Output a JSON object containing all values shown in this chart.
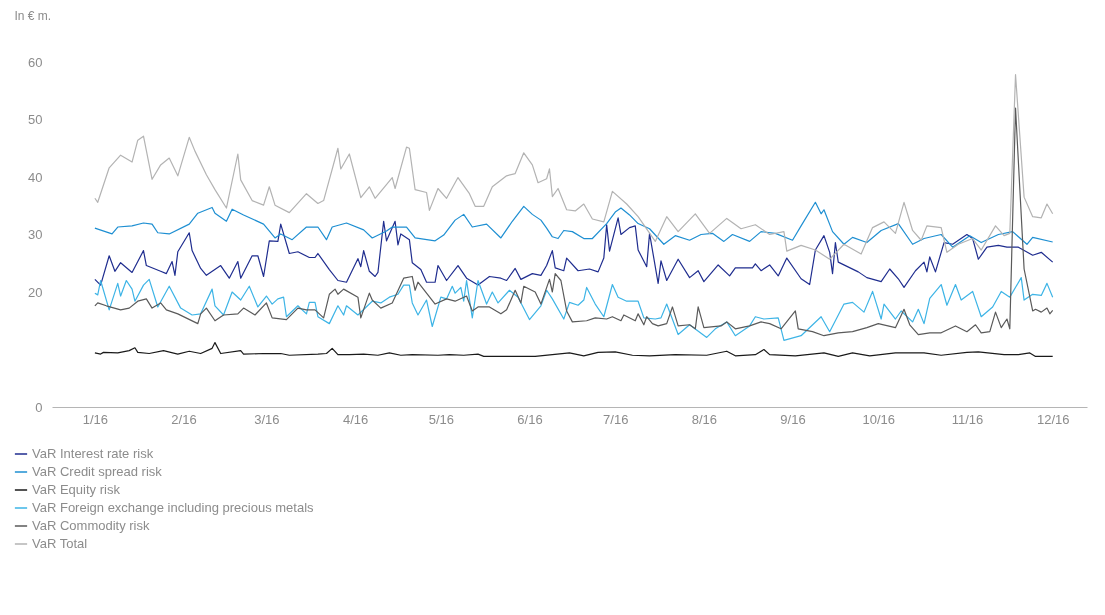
{
  "chart_data": {
    "type": "line",
    "ylabel": "In € m.",
    "xlim": [
      "2015-12-17",
      "2016-12-13"
    ],
    "ylim": [
      0,
      60
    ],
    "xticks": [
      {
        "value": "2016-01-01",
        "label": "1/16"
      },
      {
        "value": "2016-02-01",
        "label": "2/16"
      },
      {
        "value": "2016-03-01",
        "label": "3/16"
      },
      {
        "value": "2016-04-01",
        "label": "4/16"
      },
      {
        "value": "2016-05-01",
        "label": "5/16"
      },
      {
        "value": "2016-06-01",
        "label": "6/16"
      },
      {
        "value": "2016-07-01",
        "label": "7/16"
      },
      {
        "value": "2016-08-01",
        "label": "8/16"
      },
      {
        "value": "2016-09-01",
        "label": "9/16"
      },
      {
        "value": "2016-10-01",
        "label": "10/16"
      },
      {
        "value": "2016-11-01",
        "label": "11/16"
      },
      {
        "value": "2016-12-01",
        "label": "12/16"
      }
    ],
    "yticks": [
      0,
      20,
      30,
      40,
      50,
      60
    ],
    "grid": false,
    "legend": "bottom",
    "marker": "none",
    "line_style": "solid",
    "series": [
      {
        "name": "VaR Interest rate risk",
        "color": "#1f2d8f",
        "x": [
          "2016-01-01",
          "2016-01-03",
          "2016-01-06",
          "2016-01-08",
          "2016-01-10",
          "2016-01-14",
          "2016-01-18",
          "2016-01-19",
          "2016-01-24",
          "2016-01-26",
          "2016-01-28",
          "2016-01-29",
          "2016-01-30",
          "2016-02-03",
          "2016-02-04",
          "2016-02-07",
          "2016-02-09",
          "2016-02-14",
          "2016-02-17",
          "2016-02-20",
          "2016-02-21",
          "2016-02-25",
          "2016-02-27",
          "2016-02-29",
          "2016-03-02",
          "2016-03-05",
          "2016-03-06",
          "2016-03-09",
          "2016-03-12",
          "2016-03-16",
          "2016-03-18",
          "2016-03-19",
          "2016-03-23",
          "2016-03-26",
          "2016-03-29",
          "2016-04-02",
          "2016-04-03",
          "2016-04-04",
          "2016-04-06",
          "2016-04-08",
          "2016-04-09",
          "2016-04-11",
          "2016-04-12",
          "2016-04-15",
          "2016-04-16",
          "2016-04-17",
          "2016-04-20",
          "2016-04-21",
          "2016-04-24",
          "2016-04-26",
          "2016-04-29",
          "2016-04-30",
          "2016-05-03",
          "2016-05-07",
          "2016-05-10",
          "2016-05-14",
          "2016-05-18",
          "2016-05-22",
          "2016-05-24",
          "2016-05-27",
          "2016-05-29",
          "2016-06-02",
          "2016-06-05",
          "2016-06-07",
          "2016-06-09",
          "2016-06-10",
          "2016-06-13",
          "2016-06-14",
          "2016-06-18",
          "2016-06-22",
          "2016-06-25",
          "2016-06-27",
          "2016-06-28",
          "2016-06-29",
          "2016-07-02",
          "2016-07-03",
          "2016-07-06",
          "2016-07-08",
          "2016-07-09",
          "2016-07-12",
          "2016-07-13",
          "2016-07-16",
          "2016-07-17",
          "2016-07-19",
          "2016-07-23",
          "2016-07-27",
          "2016-07-30",
          "2016-08-01",
          "2016-08-06",
          "2016-08-10",
          "2016-08-12",
          "2016-08-18",
          "2016-08-19",
          "2016-08-21",
          "2016-08-24",
          "2016-08-27",
          "2016-08-30",
          "2016-09-04",
          "2016-09-07",
          "2016-09-09",
          "2016-09-12",
          "2016-09-14",
          "2016-09-15",
          "2016-09-16",
          "2016-09-17",
          "2016-09-24",
          "2016-09-27",
          "2016-10-02",
          "2016-10-05",
          "2016-10-08",
          "2016-10-10",
          "2016-10-14",
          "2016-10-17",
          "2016-10-18",
          "2016-10-19",
          "2016-10-21",
          "2016-10-24",
          "2016-10-27",
          "2016-11-01",
          "2016-11-03",
          "2016-11-05",
          "2016-11-08",
          "2016-11-12",
          "2016-11-15",
          "2016-11-19",
          "2016-11-24",
          "2016-11-27",
          "2016-12-01"
        ],
        "values": [
          22.2,
          21.2,
          26.3,
          23.6,
          25.1,
          23.4,
          27.2,
          24.6,
          23.6,
          23.2,
          25.3,
          22.9,
          27,
          30.3,
          27.2,
          24.1,
          22.9,
          24.6,
          22.4,
          25.3,
          22.4,
          26.3,
          26.3,
          22.7,
          28.9,
          28.8,
          31.8,
          26.7,
          27,
          26,
          26,
          26.7,
          23.9,
          22,
          21.7,
          25.8,
          24.4,
          27.2,
          23.6,
          22.7,
          23.4,
          32.3,
          28.9,
          32.3,
          28.2,
          30.1,
          29.1,
          25.1,
          23.9,
          21.7,
          21.7,
          24.6,
          22,
          24.6,
          22.4,
          21.2,
          22.7,
          22.4,
          22,
          24.1,
          22.2,
          23.2,
          22.9,
          24.6,
          27.2,
          24.2,
          23.7,
          25.9,
          23.7,
          24,
          23.5,
          25.9,
          31.7,
          27.1,
          32.9,
          30,
          31.2,
          31.5,
          27.3,
          24.4,
          30.2,
          21.5,
          25.4,
          22,
          25.7,
          22.5,
          23.7,
          21.8,
          24.7,
          22.8,
          24.2,
          24.2,
          24.9,
          23.7,
          24.7,
          22.8,
          25.9,
          22.3,
          21.3,
          27.3,
          29.8,
          26.9,
          23.2,
          28.6,
          25.2,
          23.5,
          22.5,
          21.8,
          24,
          22.3,
          20.8,
          23.7,
          25.2,
          23.5,
          26.1,
          23.5,
          28.6,
          28.3,
          30,
          29.3,
          25.7,
          27.8,
          28.1,
          27.8,
          27.8,
          26.4,
          26.9,
          25.2
        ]
      },
      {
        "name": "VaR Credit spread risk",
        "color": "#1e8fd2",
        "x": [
          "2016-01-01",
          "2016-01-07",
          "2016-01-09",
          "2016-01-14",
          "2016-01-18",
          "2016-01-21",
          "2016-01-23",
          "2016-01-27",
          "2016-02-03",
          "2016-02-06",
          "2016-02-11",
          "2016-02-12",
          "2016-02-16",
          "2016-02-18",
          "2016-02-22",
          "2016-02-29",
          "2016-03-04",
          "2016-03-06",
          "2016-03-10",
          "2016-03-15",
          "2016-03-19",
          "2016-03-22",
          "2016-03-24",
          "2016-03-29",
          "2016-04-04",
          "2016-04-07",
          "2016-04-12",
          "2016-04-14",
          "2016-04-19",
          "2016-04-22",
          "2016-04-29",
          "2016-05-02",
          "2016-05-06",
          "2016-05-09",
          "2016-05-12",
          "2016-05-17",
          "2016-05-22",
          "2016-05-26",
          "2016-05-30",
          "2016-06-02",
          "2016-06-05",
          "2016-06-07",
          "2016-06-09",
          "2016-06-11",
          "2016-06-13",
          "2016-06-16",
          "2016-06-20",
          "2016-06-23",
          "2016-06-28",
          "2016-07-01",
          "2016-07-03",
          "2016-07-06",
          "2016-07-09",
          "2016-07-13",
          "2016-07-18",
          "2016-07-22",
          "2016-07-27",
          "2016-07-31",
          "2016-08-04",
          "2016-08-08",
          "2016-08-11",
          "2016-08-17",
          "2016-08-21",
          "2016-08-26",
          "2016-09-01",
          "2016-09-04",
          "2016-09-09",
          "2016-09-11",
          "2016-09-12",
          "2016-09-15",
          "2016-09-19",
          "2016-09-22",
          "2016-09-27",
          "2016-10-02",
          "2016-10-08",
          "2016-10-13",
          "2016-10-17",
          "2016-10-23",
          "2016-10-27",
          "2016-11-02",
          "2016-11-06",
          "2016-11-12",
          "2016-11-17",
          "2016-11-22",
          "2016-11-24",
          "2016-12-01"
        ],
        "values": [
          31.1,
          30.1,
          31.3,
          31.5,
          32,
          31.8,
          30.3,
          30.1,
          31.8,
          33.7,
          34.7,
          33.7,
          32.3,
          34.4,
          33.4,
          31.8,
          29.4,
          30.1,
          29.1,
          31.3,
          31.3,
          29.1,
          31.3,
          32,
          30.8,
          29.4,
          30.6,
          31.3,
          31.3,
          29.4,
          28.9,
          29.9,
          32.5,
          33.5,
          31.3,
          31.8,
          29.4,
          32.3,
          34.9,
          33.5,
          32.5,
          31.1,
          29.6,
          29.3,
          30.7,
          30.5,
          29.3,
          29.3,
          31.9,
          33.9,
          34.6,
          33.4,
          31.9,
          31,
          28.3,
          29.8,
          29,
          30,
          30.2,
          28.8,
          30,
          28.8,
          30.5,
          30.2,
          29,
          31.5,
          35.6,
          33.6,
          34.3,
          30.5,
          28.3,
          29.5,
          28.6,
          30.7,
          31.9,
          28.3,
          29.3,
          30,
          27.8,
          29.8,
          28.6,
          30,
          30.5,
          28.3,
          29.5,
          28.7
        ]
      },
      {
        "name": "VaR Equity risk",
        "color": "#1a1a1a",
        "x": [
          "2016-01-01",
          "2016-01-03",
          "2016-01-04",
          "2016-01-09",
          "2016-01-13",
          "2016-01-15",
          "2016-01-16",
          "2016-01-20",
          "2016-01-25",
          "2016-01-30",
          "2016-02-03",
          "2016-02-07",
          "2016-02-11",
          "2016-02-12",
          "2016-02-14",
          "2016-02-21",
          "2016-02-22",
          "2016-02-29",
          "2016-03-06",
          "2016-03-09",
          "2016-03-19",
          "2016-03-22",
          "2016-03-24",
          "2016-03-26",
          "2016-03-30",
          "2016-04-04",
          "2016-04-09",
          "2016-04-13",
          "2016-04-17",
          "2016-04-21",
          "2016-04-30",
          "2016-05-04",
          "2016-05-09",
          "2016-05-14",
          "2016-05-16",
          "2016-05-25",
          "2016-06-03",
          "2016-06-09",
          "2016-06-15",
          "2016-06-20",
          "2016-06-25",
          "2016-07-01",
          "2016-07-07",
          "2016-07-13",
          "2016-07-22",
          "2016-08-02",
          "2016-08-09",
          "2016-08-12",
          "2016-08-19",
          "2016-08-22",
          "2016-08-24",
          "2016-09-02",
          "2016-09-12",
          "2016-09-17",
          "2016-09-22",
          "2016-09-28",
          "2016-10-07",
          "2016-10-17",
          "2016-10-23",
          "2016-11-01",
          "2016-11-05",
          "2016-11-14",
          "2016-11-19",
          "2016-11-23",
          "2016-11-25",
          "2016-12-01"
        ],
        "values": [
          9.4,
          9.2,
          9.5,
          9.4,
          9.8,
          10.3,
          9.5,
          9.3,
          9.8,
          9.2,
          9.7,
          9.3,
          10.2,
          11.2,
          9.3,
          9.8,
          9.2,
          9.3,
          9.3,
          9,
          9.2,
          9.3,
          10.2,
          9.1,
          9.1,
          9.2,
          9,
          9.4,
          9,
          9.1,
          9,
          9.1,
          9,
          9.2,
          8.8,
          8.8,
          8.8,
          9.1,
          9.4,
          8.9,
          9.5,
          9.6,
          9,
          8.9,
          9.1,
          9,
          9.7,
          8.9,
          9.1,
          10,
          9.1,
          8.9,
          9.4,
          8.8,
          9.4,
          8.9,
          9.4,
          9.4,
          9,
          9.5,
          9.6,
          9.1,
          9.1,
          9.4,
          8.8,
          8.8
        ]
      },
      {
        "name": "VaR Foreign exchange including precious metals",
        "color": "#3db4e6",
        "x": [
          "2016-01-01",
          "2016-01-02",
          "2016-01-03",
          "2016-01-06",
          "2016-01-09",
          "2016-01-10",
          "2016-01-12",
          "2016-01-14",
          "2016-01-15",
          "2016-01-18",
          "2016-01-20",
          "2016-01-23",
          "2016-01-27",
          "2016-01-31",
          "2016-02-04",
          "2016-02-07",
          "2016-02-11",
          "2016-02-12",
          "2016-02-15",
          "2016-02-18",
          "2016-02-21",
          "2016-02-24",
          "2016-02-27",
          "2016-03-01",
          "2016-03-03",
          "2016-03-05",
          "2016-03-07",
          "2016-03-08",
          "2016-03-12",
          "2016-03-15",
          "2016-03-16",
          "2016-03-18",
          "2016-03-19",
          "2016-03-23",
          "2016-03-26",
          "2016-03-28",
          "2016-03-29",
          "2016-04-02",
          "2016-04-07",
          "2016-04-10",
          "2016-04-13",
          "2016-04-16",
          "2016-04-18",
          "2016-04-20",
          "2016-04-21",
          "2016-04-23",
          "2016-04-26",
          "2016-04-28",
          "2016-05-01",
          "2016-05-03",
          "2016-05-05",
          "2016-05-06",
          "2016-05-08",
          "2016-05-09",
          "2016-05-10",
          "2016-05-12",
          "2016-05-14",
          "2016-05-17",
          "2016-05-19",
          "2016-05-21",
          "2016-05-25",
          "2016-05-28",
          "2016-06-01",
          "2016-06-05",
          "2016-06-07",
          "2016-06-09",
          "2016-06-13",
          "2016-06-15",
          "2016-06-18",
          "2016-06-20",
          "2016-06-21",
          "2016-06-24",
          "2016-06-27",
          "2016-06-30",
          "2016-07-02",
          "2016-07-05",
          "2016-07-09",
          "2016-07-11",
          "2016-07-15",
          "2016-07-17",
          "2016-07-19",
          "2016-07-23",
          "2016-07-27",
          "2016-08-02",
          "2016-08-05",
          "2016-08-09",
          "2016-08-12",
          "2016-08-17",
          "2016-08-19",
          "2016-08-22",
          "2016-08-27",
          "2016-08-29",
          "2016-09-04",
          "2016-09-11",
          "2016-09-14",
          "2016-09-19",
          "2016-09-22",
          "2016-09-26",
          "2016-09-29",
          "2016-10-02",
          "2016-10-03",
          "2016-10-07",
          "2016-10-09",
          "2016-10-13",
          "2016-10-15",
          "2016-10-17",
          "2016-10-19",
          "2016-10-23",
          "2016-10-25",
          "2016-10-28",
          "2016-10-30",
          "2016-11-03",
          "2016-11-06",
          "2016-11-10",
          "2016-11-13",
          "2016-11-16",
          "2016-11-20",
          "2016-11-21",
          "2016-11-24",
          "2016-11-27",
          "2016-11-29",
          "2016-12-01"
        ],
        "values": [
          19.8,
          19.5,
          22,
          16.9,
          21.5,
          19.3,
          22,
          20.5,
          18.4,
          21.2,
          22.2,
          17.4,
          21,
          17.2,
          16,
          16.2,
          20.5,
          17.6,
          16,
          20,
          18.6,
          21,
          17.4,
          19.3,
          17.9,
          18.8,
          19.1,
          15.7,
          17.6,
          16.2,
          18.2,
          18.2,
          15.7,
          14.5,
          17.6,
          16,
          17.6,
          16,
          18.4,
          18.1,
          19.1,
          19.6,
          21.2,
          21.2,
          18.1,
          16,
          18.6,
          14,
          19.1,
          18.8,
          21,
          19.8,
          20.8,
          18.4,
          22,
          15.5,
          22,
          17.9,
          20,
          18.1,
          20.3,
          19.1,
          15.2,
          17.6,
          20.3,
          18.8,
          15.3,
          18.2,
          17.7,
          18.6,
          20.8,
          17.9,
          15.7,
          21.3,
          19.1,
          18.4,
          18.4,
          15.5,
          15.3,
          15.5,
          17.9,
          12.6,
          14.3,
          12.1,
          13.6,
          14.8,
          12.4,
          14.1,
          15.7,
          15.3,
          15.5,
          11.6,
          12.4,
          15.7,
          13.1,
          17.9,
          18.2,
          16.5,
          20.1,
          15.3,
          17.9,
          15.3,
          16.7,
          14.8,
          17,
          14.5,
          18.9,
          21.3,
          17.7,
          21.3,
          18.6,
          20.1,
          15.7,
          17.4,
          20.1,
          19.1,
          22.5,
          18.6,
          19.6,
          19.4,
          21.5,
          19.1
        ]
      },
      {
        "name": "VaR Commodity risk",
        "color": "#5a5a5a",
        "x": [
          "2016-01-01",
          "2016-01-02",
          "2016-01-05",
          "2016-01-10",
          "2016-01-13",
          "2016-01-16",
          "2016-01-19",
          "2016-01-21",
          "2016-01-24",
          "2016-01-26",
          "2016-01-30",
          "2016-02-06",
          "2016-02-07",
          "2016-02-09",
          "2016-02-12",
          "2016-02-15",
          "2016-02-20",
          "2016-02-22",
          "2016-02-26",
          "2016-03-01",
          "2016-03-03",
          "2016-03-08",
          "2016-03-12",
          "2016-03-15",
          "2016-03-18",
          "2016-03-21",
          "2016-03-23",
          "2016-03-25",
          "2016-03-26",
          "2016-03-28",
          "2016-04-02",
          "2016-04-03",
          "2016-04-06",
          "2016-04-07",
          "2016-04-10",
          "2016-04-14",
          "2016-04-18",
          "2016-04-21",
          "2016-04-22",
          "2016-04-23",
          "2016-04-29",
          "2016-05-03",
          "2016-05-06",
          "2016-05-10",
          "2016-05-12",
          "2016-05-14",
          "2016-05-18",
          "2016-05-22",
          "2016-05-24",
          "2016-05-27",
          "2016-05-29",
          "2016-05-30",
          "2016-06-03",
          "2016-06-05",
          "2016-06-08",
          "2016-06-09",
          "2016-06-10",
          "2016-06-12",
          "2016-06-14",
          "2016-06-16",
          "2016-06-21",
          "2016-06-24",
          "2016-06-28",
          "2016-06-30",
          "2016-07-03",
          "2016-07-04",
          "2016-07-08",
          "2016-07-09",
          "2016-07-11",
          "2016-07-12",
          "2016-07-14",
          "2016-07-16",
          "2016-07-19",
          "2016-07-21",
          "2016-07-23",
          "2016-07-27",
          "2016-07-29",
          "2016-07-30",
          "2016-08-01",
          "2016-08-07",
          "2016-08-09",
          "2016-08-12",
          "2016-08-17",
          "2016-08-21",
          "2016-08-24",
          "2016-08-28",
          "2016-09-02",
          "2016-09-03",
          "2016-09-08",
          "2016-09-12",
          "2016-09-17",
          "2016-09-22",
          "2016-09-27",
          "2016-10-01",
          "2016-10-07",
          "2016-10-10",
          "2016-10-12",
          "2016-10-15",
          "2016-10-19",
          "2016-10-23",
          "2016-10-28",
          "2016-11-01",
          "2016-11-04",
          "2016-11-06",
          "2016-11-09",
          "2016-11-11",
          "2016-11-13",
          "2016-11-15",
          "2016-11-16",
          "2016-11-18",
          "2016-11-21",
          "2016-11-24",
          "2016-11-25",
          "2016-11-27",
          "2016-11-29",
          "2016-11-30",
          "2016-12-01"
        ],
        "values": [
          17.6,
          18.1,
          17.6,
          16.9,
          17.2,
          18.4,
          18.8,
          17.2,
          18.1,
          16.9,
          16.2,
          14.5,
          16.2,
          17.2,
          15,
          16,
          16.2,
          17.2,
          16,
          18.1,
          15.5,
          15.2,
          17.2,
          16.9,
          16.9,
          15.5,
          19.6,
          20.5,
          19.6,
          20.5,
          19.1,
          15.5,
          19.8,
          18.6,
          17.2,
          18.1,
          22.4,
          22.7,
          20.3,
          21.7,
          17.9,
          18.8,
          18.4,
          19.3,
          16.7,
          17.4,
          17.4,
          16.2,
          16.9,
          20.3,
          18.1,
          21,
          20,
          17.9,
          22.2,
          20,
          23.2,
          22,
          16.7,
          14.8,
          15,
          15.5,
          15.3,
          15.7,
          15,
          16,
          15,
          16.2,
          14.3,
          15.7,
          14.5,
          14.1,
          14.5,
          17.4,
          14.1,
          14.3,
          13.6,
          17.4,
          13.8,
          14.1,
          14.8,
          13.6,
          14.1,
          14.8,
          14.5,
          13.6,
          16.7,
          13.6,
          13.1,
          12.4,
          12.9,
          13.1,
          13.8,
          14.5,
          13.8,
          17,
          14.3,
          12.6,
          12.9,
          12.9,
          14.1,
          13.1,
          14.3,
          12.9,
          13.1,
          16.5,
          13.8,
          15.3,
          13.6,
          52,
          24,
          16.7,
          17,
          16.5,
          17.2,
          16.2,
          16.8
        ]
      },
      {
        "name": "VaR Total",
        "color": "#b3b3b3",
        "x": [
          "2016-01-01",
          "2016-01-02",
          "2016-01-06",
          "2016-01-10",
          "2016-01-14",
          "2016-01-16",
          "2016-01-18",
          "2016-01-21",
          "2016-01-24",
          "2016-01-27",
          "2016-01-30",
          "2016-02-03",
          "2016-02-05",
          "2016-02-09",
          "2016-02-12",
          "2016-02-16",
          "2016-02-20",
          "2016-02-21",
          "2016-02-25",
          "2016-02-29",
          "2016-03-02",
          "2016-03-04",
          "2016-03-09",
          "2016-03-15",
          "2016-03-19",
          "2016-03-21",
          "2016-03-26",
          "2016-03-27",
          "2016-03-30",
          "2016-04-03",
          "2016-04-06",
          "2016-04-08",
          "2016-04-14",
          "2016-04-15",
          "2016-04-19",
          "2016-04-20",
          "2016-04-22",
          "2016-04-26",
          "2016-04-27",
          "2016-04-30",
          "2016-05-03",
          "2016-05-07",
          "2016-05-11",
          "2016-05-13",
          "2016-05-16",
          "2016-05-19",
          "2016-05-24",
          "2016-05-27",
          "2016-05-30",
          "2016-06-02",
          "2016-06-04",
          "2016-06-07",
          "2016-06-08",
          "2016-06-09",
          "2016-06-11",
          "2016-06-14",
          "2016-06-17",
          "2016-06-20",
          "2016-06-23",
          "2016-06-27",
          "2016-06-30",
          "2016-07-05",
          "2016-07-09",
          "2016-07-15",
          "2016-07-19",
          "2016-07-23",
          "2016-07-29",
          "2016-08-03",
          "2016-08-09",
          "2016-08-14",
          "2016-08-19",
          "2016-08-24",
          "2016-08-29",
          "2016-08-30",
          "2016-09-04",
          "2016-09-09",
          "2016-09-14",
          "2016-09-19",
          "2016-09-25",
          "2016-09-29",
          "2016-10-03",
          "2016-10-07",
          "2016-10-10",
          "2016-10-13",
          "2016-10-16",
          "2016-10-18",
          "2016-10-23",
          "2016-10-25",
          "2016-10-29",
          "2016-11-03",
          "2016-11-06",
          "2016-11-11",
          "2016-11-14",
          "2016-11-16",
          "2016-11-18",
          "2016-11-21",
          "2016-11-24",
          "2016-11-27",
          "2016-11-29",
          "2016-12-01"
        ],
        "values": [
          36.3,
          35.6,
          41.6,
          43.8,
          42.6,
          46.4,
          47.1,
          39.6,
          42.1,
          43.3,
          40.2,
          46.9,
          44.5,
          40.4,
          37.8,
          34.6,
          44,
          39.5,
          35.9,
          35.1,
          38.3,
          35.1,
          33.8,
          37.1,
          35.4,
          35.9,
          45,
          41.4,
          44,
          36.4,
          38.3,
          36.3,
          39.9,
          38,
          45.2,
          45,
          37.8,
          37.3,
          34.2,
          38,
          36.3,
          39.9,
          37.1,
          34.9,
          34.9,
          38.3,
          40.2,
          40.6,
          44.2,
          42.1,
          39,
          39.7,
          41.4,
          36.6,
          38,
          34.3,
          34.1,
          35.3,
          32.7,
          32.2,
          37.5,
          35.3,
          33.1,
          28.8,
          33.1,
          30.5,
          33.6,
          30.2,
          32.8,
          31,
          31.7,
          30,
          30.5,
          27.1,
          28.1,
          27.3,
          25.7,
          28.3,
          26.6,
          31.2,
          32.2,
          30.2,
          35.6,
          30.7,
          29,
          31.5,
          31.2,
          26.9,
          28.3,
          29.3,
          27.3,
          31.5,
          29.8,
          30.2,
          57.8,
          36.5,
          33.1,
          32.9,
          35.3,
          33.6
        ]
      }
    ]
  }
}
